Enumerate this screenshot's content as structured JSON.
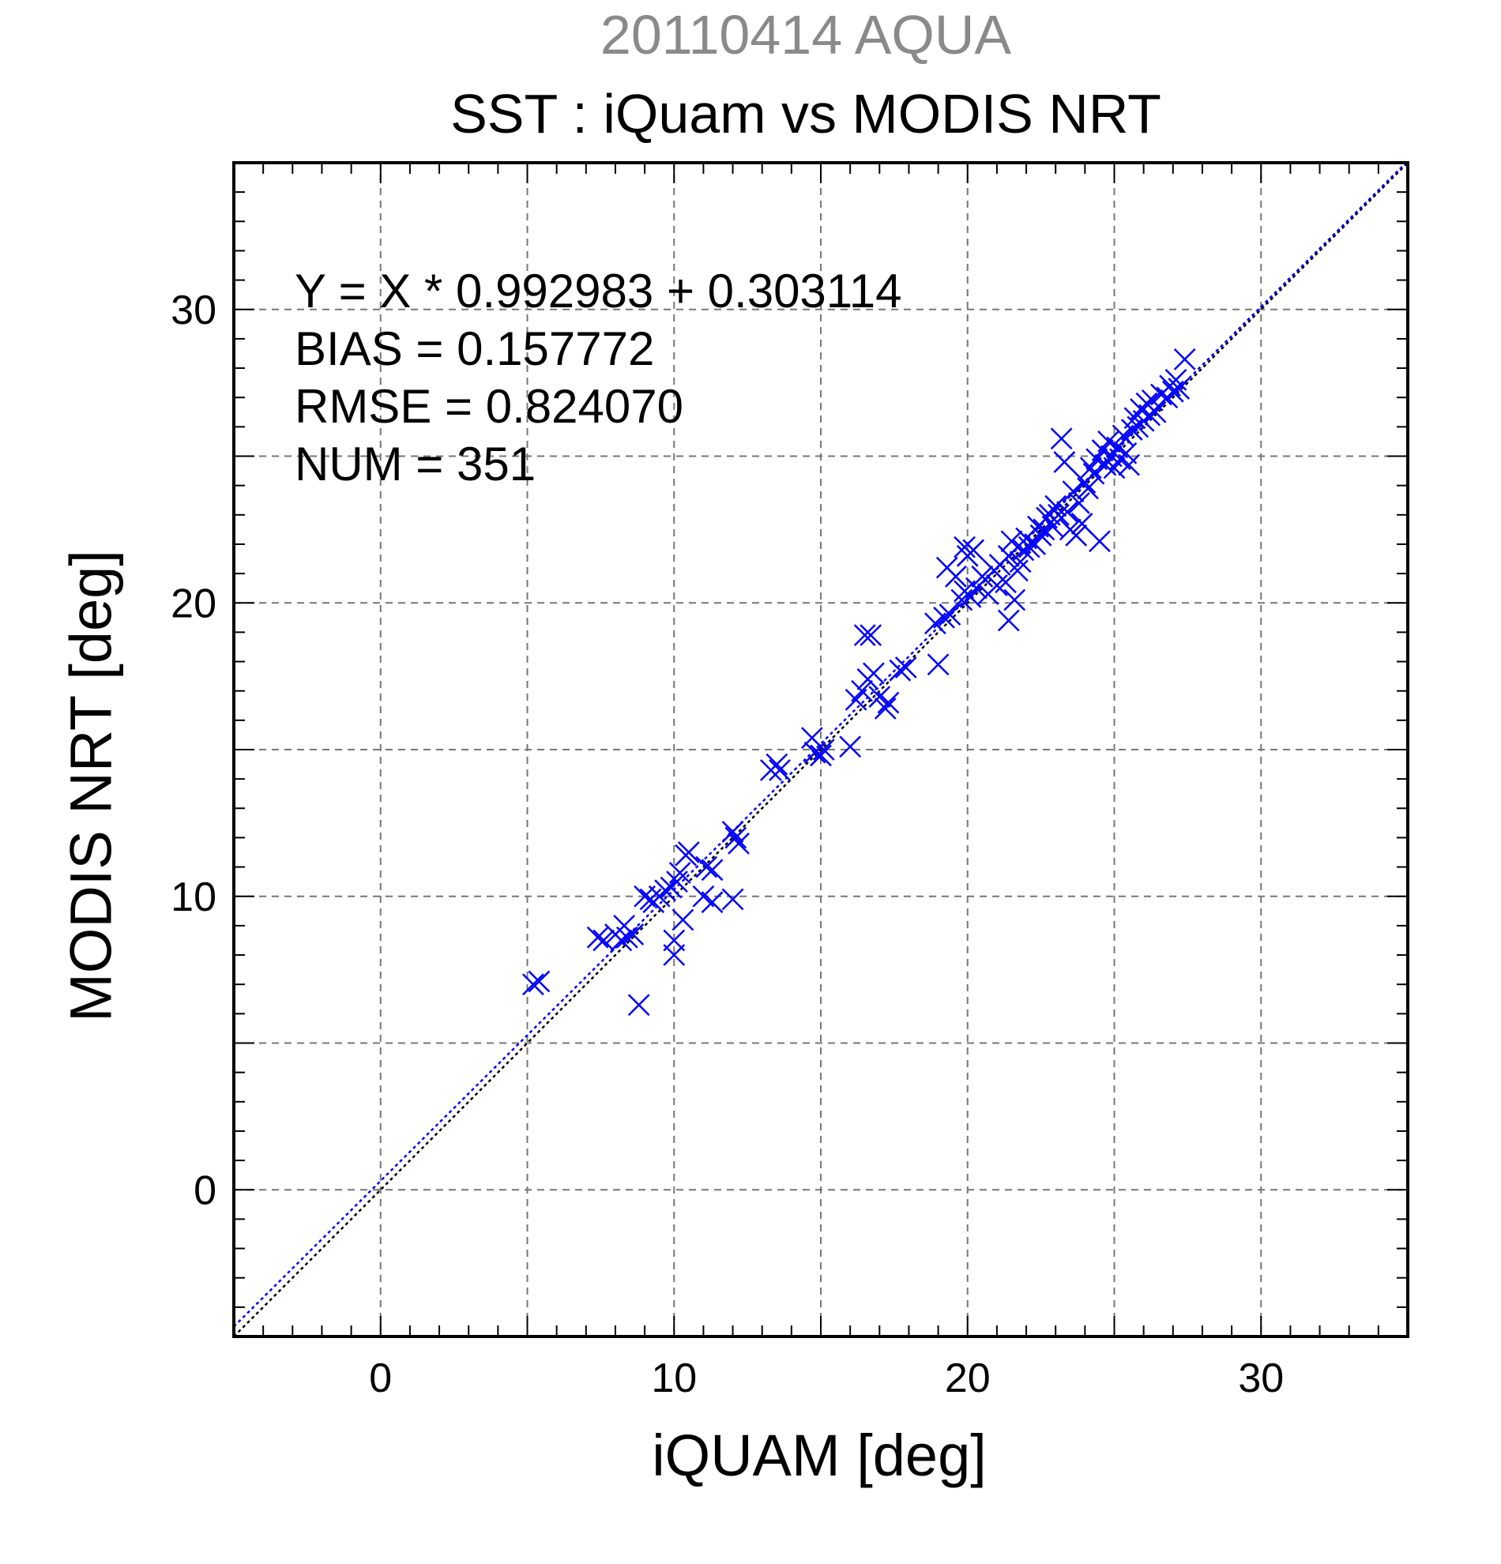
{
  "chart_data": {
    "type": "scatter",
    "title": "20110414 AQUA",
    "subtitle": "SST : iQuam vs MODIS NRT",
    "xlabel": "iQUAM [deg]",
    "ylabel": "MODIS NRT [deg]",
    "xlim": [
      -5,
      35
    ],
    "ylim": [
      -5,
      35
    ],
    "xticks": [
      0,
      10,
      20,
      30
    ],
    "yticks": [
      0,
      10,
      20,
      30
    ],
    "grid": true,
    "annotations": [
      "Y = X * 0.992983 + 0.303114",
      "BIAS = 0.157772",
      "RMSE = 0.824070",
      "NUM = 351"
    ],
    "colors": {
      "points": "#0000ff",
      "fit_line": "#0000ff",
      "identity_line": "#000000",
      "grid": "#777777"
    },
    "lines": [
      {
        "kind": "identity",
        "slope": 1,
        "intercept": 0
      },
      {
        "kind": "fit",
        "slope": 0.992983,
        "intercept": 0.303114
      }
    ],
    "marker": "x",
    "points": [
      [
        5.2,
        7.0
      ],
      [
        5.4,
        7.1
      ],
      [
        7.4,
        8.6
      ],
      [
        7.6,
        8.5
      ],
      [
        8.0,
        8.7
      ],
      [
        8.2,
        8.5
      ],
      [
        8.3,
        9.0
      ],
      [
        8.4,
        8.6
      ],
      [
        8.6,
        8.7
      ],
      [
        8.8,
        6.3
      ],
      [
        9.0,
        10.0
      ],
      [
        9.2,
        9.9
      ],
      [
        9.3,
        9.8
      ],
      [
        9.5,
        10.0
      ],
      [
        9.7,
        10.2
      ],
      [
        9.9,
        10.3
      ],
      [
        10.0,
        8.0
      ],
      [
        10.0,
        8.5
      ],
      [
        10.1,
        10.5
      ],
      [
        10.2,
        10.8
      ],
      [
        10.3,
        9.2
      ],
      [
        10.4,
        11.4
      ],
      [
        10.5,
        11.5
      ],
      [
        11.0,
        10.0
      ],
      [
        11.1,
        11.0
      ],
      [
        11.3,
        10.9
      ],
      [
        11.3,
        9.8
      ],
      [
        12.0,
        12.2
      ],
      [
        12.1,
        12.0
      ],
      [
        12.2,
        11.8
      ],
      [
        12.0,
        9.9
      ],
      [
        13.3,
        14.3
      ],
      [
        13.5,
        14.5
      ],
      [
        13.6,
        14.3
      ],
      [
        14.7,
        15.4
      ],
      [
        14.8,
        14.9
      ],
      [
        15.0,
        14.8
      ],
      [
        15.1,
        15.0
      ],
      [
        16.0,
        15.1
      ],
      [
        16.2,
        16.7
      ],
      [
        16.4,
        17.0
      ],
      [
        16.5,
        18.9
      ],
      [
        16.7,
        18.9
      ],
      [
        16.6,
        17.4
      ],
      [
        16.8,
        17.6
      ],
      [
        17.0,
        16.8
      ],
      [
        17.2,
        16.4
      ],
      [
        17.3,
        16.6
      ],
      [
        17.7,
        17.7
      ],
      [
        17.9,
        17.8
      ],
      [
        18.9,
        19.3
      ],
      [
        19.0,
        17.9
      ],
      [
        19.2,
        19.5
      ],
      [
        19.4,
        19.6
      ],
      [
        19.3,
        21.2
      ],
      [
        19.6,
        20.9
      ],
      [
        19.8,
        20.1
      ],
      [
        19.9,
        20.4
      ],
      [
        19.9,
        21.9
      ],
      [
        20.0,
        21.6
      ],
      [
        20.1,
        20.2
      ],
      [
        20.2,
        21.8
      ],
      [
        20.3,
        20.5
      ],
      [
        20.5,
        20.9
      ],
      [
        20.7,
        20.3
      ],
      [
        20.9,
        21.1
      ],
      [
        21.0,
        20.6
      ],
      [
        21.1,
        21.3
      ],
      [
        21.3,
        20.7
      ],
      [
        21.4,
        21.6
      ],
      [
        21.5,
        22.1
      ],
      [
        21.4,
        19.4
      ],
      [
        21.6,
        20.1
      ],
      [
        21.7,
        21.1
      ],
      [
        21.8,
        21.4
      ],
      [
        21.9,
        21.8
      ],
      [
        22.0,
        22.2
      ],
      [
        22.1,
        21.9
      ],
      [
        22.3,
        22.0
      ],
      [
        22.4,
        22.6
      ],
      [
        22.5,
        22.3
      ],
      [
        22.6,
        22.5
      ],
      [
        22.7,
        22.9
      ],
      [
        22.8,
        23.0
      ],
      [
        22.9,
        22.6
      ],
      [
        23.0,
        23.3
      ],
      [
        23.1,
        23.0
      ],
      [
        23.2,
        25.6
      ],
      [
        23.3,
        24.8
      ],
      [
        23.4,
        23.1
      ],
      [
        23.5,
        22.5
      ],
      [
        23.6,
        23.8
      ],
      [
        23.7,
        22.3
      ],
      [
        23.8,
        23.4
      ],
      [
        23.9,
        22.7
      ],
      [
        24.0,
        24.1
      ],
      [
        24.1,
        23.9
      ],
      [
        24.2,
        24.6
      ],
      [
        24.3,
        24.4
      ],
      [
        24.4,
        24.9
      ],
      [
        24.5,
        22.1
      ],
      [
        24.6,
        25.2
      ],
      [
        24.7,
        24.7
      ],
      [
        24.8,
        25.5
      ],
      [
        24.9,
        25.0
      ],
      [
        25.0,
        24.6
      ],
      [
        25.1,
        25.3
      ],
      [
        25.2,
        24.9
      ],
      [
        25.3,
        25.7
      ],
      [
        25.4,
        25.1
      ],
      [
        25.5,
        24.7
      ],
      [
        25.6,
        25.9
      ],
      [
        25.7,
        26.3
      ],
      [
        25.8,
        26.0
      ],
      [
        25.9,
        26.6
      ],
      [
        26.0,
        26.2
      ],
      [
        26.1,
        26.8
      ],
      [
        26.2,
        26.4
      ],
      [
        26.3,
        26.9
      ],
      [
        26.4,
        26.5
      ],
      [
        26.6,
        27.1
      ],
      [
        26.8,
        27.0
      ],
      [
        26.9,
        27.4
      ],
      [
        27.0,
        27.2
      ],
      [
        27.1,
        27.6
      ],
      [
        27.2,
        27.3
      ],
      [
        27.4,
        28.3
      ]
    ]
  }
}
